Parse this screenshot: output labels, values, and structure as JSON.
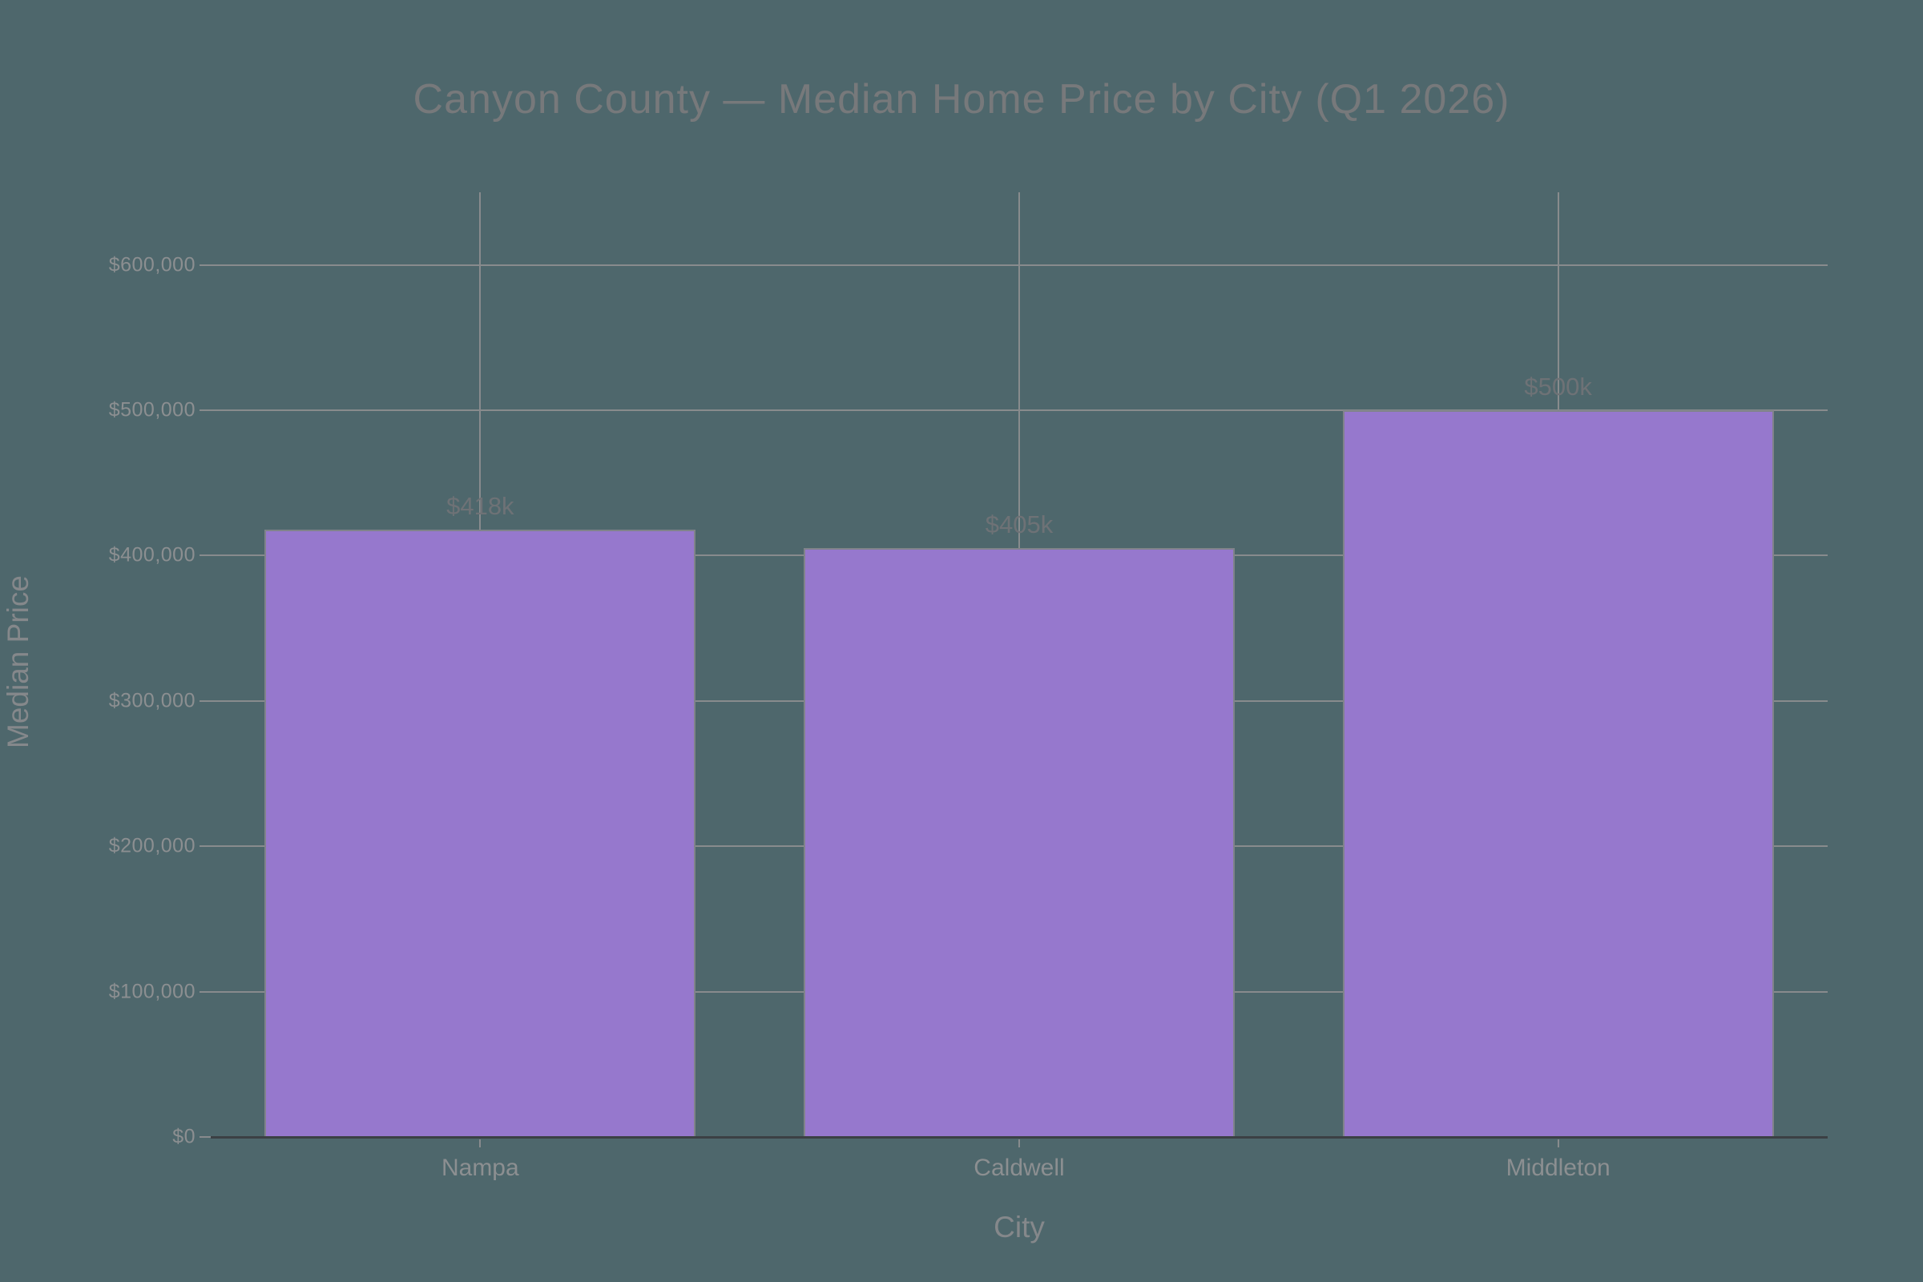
{
  "chart_data": {
    "type": "bar",
    "title": "Canyon County — Median Home Price by City (Q1 2026)",
    "xlabel": "City",
    "ylabel": "Median Price",
    "categories": [
      "Nampa",
      "Caldwell",
      "Middleton"
    ],
    "values": [
      418000,
      405000,
      500000
    ],
    "bar_labels": [
      "$418k",
      "$405k",
      "$500k"
    ],
    "y_ticks": [
      {
        "value": 0,
        "label": "$0"
      },
      {
        "value": 100000,
        "label": "$100,000"
      },
      {
        "value": 200000,
        "label": "$200,000"
      },
      {
        "value": 300000,
        "label": "$300,000"
      },
      {
        "value": 400000,
        "label": "$400,000"
      },
      {
        "value": 500000,
        "label": "$500,000"
      },
      {
        "value": 600000,
        "label": "$600,000"
      }
    ],
    "ylim": [
      0,
      650000
    ],
    "grid": true,
    "legend": false
  },
  "colors": {
    "background": "#4E676C",
    "bar_fill": "#9678CD",
    "bar_border": "#80838A",
    "gridline": "#888B8D",
    "axis_line": "#3B4044",
    "tick_label": "#8C8F91",
    "title": "#77797B",
    "data_label": "#6E7276",
    "axis_title": "#85888B"
  }
}
